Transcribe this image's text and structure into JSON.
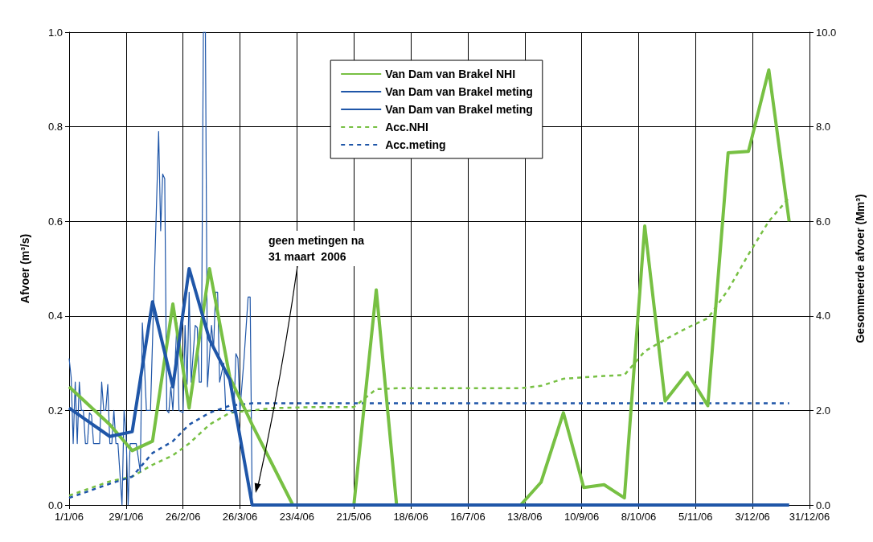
{
  "chart_data": {
    "type": "line",
    "ylabel": "Afvoer (m³/s)",
    "y2label": "Gesommeerde afvoer (Mm³)",
    "xlim": [
      "2006-01-01",
      "2006-12-31"
    ],
    "xticks": [
      {
        "value": "2006-01-01",
        "label": "1/1/06"
      },
      {
        "value": "2006-01-29",
        "label": "29/1/06"
      },
      {
        "value": "2006-02-26",
        "label": "26/2/06"
      },
      {
        "value": "2006-03-26",
        "label": "26/3/06"
      },
      {
        "value": "2006-04-23",
        "label": "23/4/06"
      },
      {
        "value": "2006-05-21",
        "label": "21/5/06"
      },
      {
        "value": "2006-06-18",
        "label": "18/6/06"
      },
      {
        "value": "2006-07-16",
        "label": "16/7/06"
      },
      {
        "value": "2006-08-13",
        "label": "13/8/06"
      },
      {
        "value": "2006-09-10",
        "label": "10/9/06"
      },
      {
        "value": "2006-10-08",
        "label": "8/10/06"
      },
      {
        "value": "2006-11-05",
        "label": "5/11/06"
      },
      {
        "value": "2006-12-03",
        "label": "3/12/06"
      },
      {
        "value": "2006-12-31",
        "label": "31/12/06"
      }
    ],
    "ylim": [
      0,
      1
    ],
    "yticks": [
      {
        "value": 0,
        "label": "0.0"
      },
      {
        "value": 0.2,
        "label": "0.2"
      },
      {
        "value": 0.4,
        "label": "0.4"
      },
      {
        "value": 0.6,
        "label": "0.6"
      },
      {
        "value": 0.8,
        "label": "0.8"
      },
      {
        "value": 1,
        "label": "1.0"
      }
    ],
    "y2lim": [
      0,
      10
    ],
    "y2ticks": [
      {
        "value": 0,
        "label": "0.0"
      },
      {
        "value": 2,
        "label": "2.0"
      },
      {
        "value": 4,
        "label": "4.0"
      },
      {
        "value": 6,
        "label": "6.0"
      },
      {
        "value": 8,
        "label": "8.0"
      },
      {
        "value": 10,
        "label": "10.0"
      }
    ],
    "grid": true,
    "legend": "top",
    "marker": "none",
    "annotations": [
      "geen metingen na\n31 maart  2006"
    ],
    "series": [
      {
        "name": "Van Dam van Brakel NHI",
        "color": "#77c043",
        "line_style": "solid",
        "x": [
          "2006-01-01",
          "2006-01-11",
          "2006-01-21",
          "2006-02-01",
          "2006-02-11",
          "2006-02-21",
          "2006-03-01",
          "2006-03-11",
          "2006-03-21",
          "2006-04-01",
          "2006-04-11",
          "2006-04-21",
          "2006-05-01",
          "2006-05-11",
          "2006-05-21",
          "2006-06-01",
          "2006-06-11",
          "2006-06-21",
          "2006-07-01",
          "2006-07-11",
          "2006-07-21",
          "2006-08-01",
          "2006-08-11",
          "2006-08-21",
          "2006-09-01",
          "2006-09-11",
          "2006-09-21",
          "2006-10-01",
          "2006-10-11",
          "2006-10-21",
          "2006-11-01",
          "2006-11-11",
          "2006-11-21",
          "2006-12-01",
          "2006-12-11",
          "2006-12-21"
        ],
        "values": [
          0.25,
          0.21,
          0.17,
          0.115,
          0.135,
          0.425,
          0.205,
          0.5,
          0.27,
          0.17,
          0.085,
          0,
          0,
          0,
          0,
          0.455,
          0,
          0,
          0,
          0,
          0,
          0,
          0,
          0.048,
          0.195,
          0.037,
          0.043,
          0.015,
          0.59,
          0.22,
          0.28,
          0.21,
          0.745,
          0.748,
          0.92,
          0.6
        ]
      },
      {
        "name": "Van Dam van Brakel meting",
        "color": "#1f56a8",
        "line_style": "solid",
        "x": [
          "2006-01-01",
          "2006-01-11",
          "2006-01-21",
          "2006-02-01",
          "2006-02-11",
          "2006-02-21",
          "2006-03-01",
          "2006-03-11",
          "2006-03-21",
          "2006-04-01",
          "2006-04-11",
          "2006-04-21",
          "2006-05-01",
          "2006-05-11",
          "2006-05-21",
          "2006-06-01",
          "2006-06-11",
          "2006-06-21",
          "2006-07-01",
          "2006-07-11",
          "2006-07-21",
          "2006-08-01",
          "2006-08-11",
          "2006-08-21",
          "2006-09-01",
          "2006-09-11",
          "2006-09-21",
          "2006-10-01",
          "2006-10-11",
          "2006-10-21",
          "2006-11-01",
          "2006-11-11",
          "2006-11-21",
          "2006-12-01",
          "2006-12-11",
          "2006-12-21"
        ],
        "values": [
          0.205,
          0.175,
          0.145,
          0.155,
          0.43,
          0.25,
          0.5,
          0.35,
          0.265,
          0,
          0,
          0,
          0,
          0,
          0,
          0,
          0,
          0,
          0,
          0,
          0,
          0,
          0,
          0,
          0,
          0,
          0,
          0,
          0,
          0,
          0,
          0,
          0,
          0,
          0,
          0
        ]
      },
      {
        "name": "Van Dam van Brakel meting",
        "color": "#1f56a8",
        "line_style": "solid",
        "x": [
          "2006-01-01",
          "2006-01-02",
          "2006-01-03",
          "2006-01-04",
          "2006-01-05",
          "2006-01-06",
          "2006-01-07",
          "2006-01-08",
          "2006-01-09",
          "2006-01-10",
          "2006-01-11",
          "2006-01-12",
          "2006-01-13",
          "2006-01-14",
          "2006-01-16",
          "2006-01-17",
          "2006-01-18",
          "2006-01-19",
          "2006-01-20",
          "2006-01-21",
          "2006-01-22",
          "2006-01-23",
          "2006-01-24",
          "2006-01-25",
          "2006-01-27",
          "2006-01-28",
          "2006-01-29",
          "2006-01-30",
          "2006-01-31",
          "2006-02-01",
          "2006-02-03",
          "2006-02-05",
          "2006-02-06",
          "2006-02-07",
          "2006-02-08",
          "2006-02-10",
          "2006-02-14",
          "2006-02-15",
          "2006-02-16",
          "2006-02-17",
          "2006-02-18",
          "2006-02-19",
          "2006-02-20",
          "2006-02-21",
          "2006-02-23",
          "2006-02-24",
          "2006-02-26",
          "2006-02-27",
          "2006-02-28",
          "2006-03-01",
          "2006-03-02",
          "2006-03-04",
          "2006-03-05",
          "2006-03-06",
          "2006-03-07",
          "2006-03-08",
          "2006-03-09",
          "2006-03-10",
          "2006-03-12",
          "2006-03-13",
          "2006-03-14",
          "2006-03-15",
          "2006-03-16",
          "2006-03-18",
          "2006-03-19",
          "2006-03-21",
          "2006-03-23",
          "2006-03-24",
          "2006-03-25",
          "2006-03-26",
          "2006-03-28",
          "2006-03-30",
          "2006-03-31",
          "2006-04-01"
        ],
        "values": [
          0.31,
          0.27,
          0.13,
          0.26,
          0.13,
          0.26,
          0.2,
          0.2,
          0.13,
          0.13,
          0.195,
          0.19,
          0.13,
          0.13,
          0.13,
          0.26,
          0.2,
          0.2,
          0.255,
          0.13,
          0.13,
          0.2,
          0.13,
          0.13,
          0,
          0.2,
          0.15,
          0,
          0.13,
          0.13,
          0.13,
          0.07,
          0.385,
          0.3,
          0.2,
          0.2,
          0.79,
          0.58,
          0.7,
          0.69,
          0.2,
          0.195,
          0.25,
          0.2,
          0.385,
          0.2,
          0.195,
          0.38,
          0.255,
          0.45,
          0.26,
          0.38,
          0.375,
          0.26,
          0.26,
          1,
          1,
          0.25,
          0.38,
          0.33,
          0.45,
          0.45,
          0.26,
          0.3,
          0.2,
          0.2,
          0.195,
          0.32,
          0.31,
          0.2,
          0.31,
          0.44,
          0.44,
          0
        ]
      },
      {
        "name": "Acc.NHI",
        "color": "#77c043",
        "line_style": "dashed",
        "axis": "y2",
        "x": [
          "2006-01-01",
          "2006-01-11",
          "2006-01-21",
          "2006-02-01",
          "2006-02-11",
          "2006-02-21",
          "2006-03-01",
          "2006-03-11",
          "2006-03-21",
          "2006-04-01",
          "2006-04-11",
          "2006-04-21",
          "2006-05-01",
          "2006-05-11",
          "2006-05-21",
          "2006-06-01",
          "2006-06-11",
          "2006-06-21",
          "2006-07-01",
          "2006-07-11",
          "2006-07-21",
          "2006-08-01",
          "2006-08-11",
          "2006-08-21",
          "2006-09-01",
          "2006-09-11",
          "2006-09-21",
          "2006-10-01",
          "2006-10-11",
          "2006-10-21",
          "2006-11-01",
          "2006-11-11",
          "2006-11-21",
          "2006-12-01",
          "2006-12-11",
          "2006-12-21"
        ],
        "values": [
          0.2,
          0.35,
          0.5,
          0.6,
          0.85,
          1.05,
          1.3,
          1.7,
          1.95,
          2.0,
          2.05,
          2.06,
          2.07,
          2.07,
          2.07,
          2.45,
          2.47,
          2.47,
          2.47,
          2.47,
          2.47,
          2.47,
          2.47,
          2.52,
          2.67,
          2.7,
          2.73,
          2.75,
          3.25,
          3.5,
          3.75,
          3.95,
          4.55,
          5.3,
          6.0,
          6.5
        ]
      },
      {
        "name": "Acc.meting",
        "color": "#1f56a8",
        "line_style": "dashed",
        "axis": "y2",
        "x": [
          "2006-01-01",
          "2006-01-11",
          "2006-01-21",
          "2006-02-01",
          "2006-02-11",
          "2006-02-21",
          "2006-03-01",
          "2006-03-11",
          "2006-03-21",
          "2006-04-01",
          "2006-04-11",
          "2006-04-21",
          "2006-05-01",
          "2006-05-11",
          "2006-05-21",
          "2006-06-01",
          "2006-06-11",
          "2006-06-21",
          "2006-07-01",
          "2006-07-11",
          "2006-07-21",
          "2006-08-01",
          "2006-08-11",
          "2006-08-21",
          "2006-09-01",
          "2006-09-11",
          "2006-09-21",
          "2006-10-01",
          "2006-10-11",
          "2006-10-21",
          "2006-11-01",
          "2006-11-11",
          "2006-11-21",
          "2006-12-01",
          "2006-12-11",
          "2006-12-21"
        ],
        "values": [
          0.15,
          0.3,
          0.45,
          0.6,
          1.1,
          1.35,
          1.7,
          1.95,
          2.1,
          2.15,
          2.15,
          2.15,
          2.15,
          2.15,
          2.15,
          2.15,
          2.15,
          2.15,
          2.15,
          2.15,
          2.15,
          2.15,
          2.15,
          2.15,
          2.15,
          2.15,
          2.15,
          2.15,
          2.15,
          2.15,
          2.15,
          2.15,
          2.15,
          2.15,
          2.15,
          2.15
        ]
      }
    ]
  }
}
